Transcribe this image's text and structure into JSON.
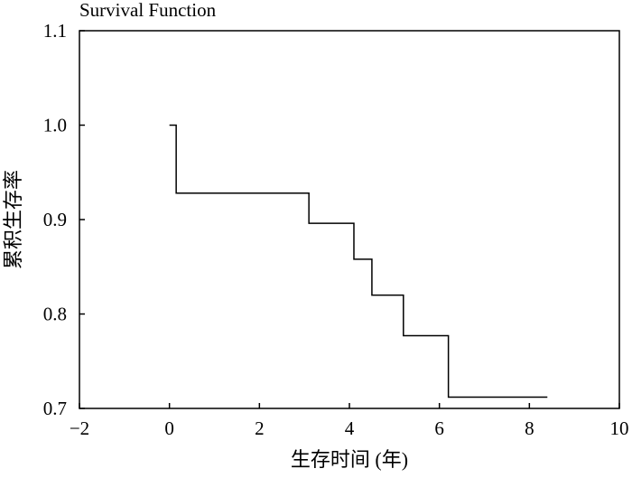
{
  "chart_data": {
    "type": "line",
    "step": true,
    "title": "Survival Function",
    "xlabel": "生存时间 (年)",
    "ylabel": "累积生存率",
    "xlim": [
      -2,
      10
    ],
    "ylim": [
      0.7,
      1.1
    ],
    "xticks": [
      -2,
      0,
      2,
      4,
      6,
      8,
      10
    ],
    "yticks": [
      0.7,
      0.8,
      0.9,
      1.0,
      1.1
    ],
    "xtick_labels": [
      "−2",
      "0",
      "2",
      "4",
      "6",
      "8",
      "10"
    ],
    "ytick_labels": [
      "0.7",
      "0.8",
      "0.9",
      "1.0",
      "1.1"
    ],
    "grid": false,
    "series": [
      {
        "x": [
          0.0,
          0.15,
          3.1,
          4.1,
          4.5,
          5.2,
          6.2,
          8.4
        ],
        "y": [
          1.0,
          0.928,
          0.896,
          0.858,
          0.82,
          0.777,
          0.712,
          0.712
        ],
        "color": "#000000"
      }
    ]
  }
}
